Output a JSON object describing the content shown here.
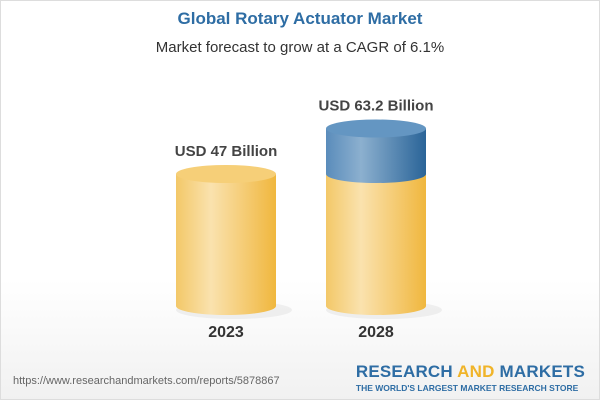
{
  "chart_data": {
    "type": "bar",
    "style": "3d-cylinder",
    "title": "Global Rotary Actuator Market",
    "subtitle": "Market forecast to grow at a CAGR of 6.1%",
    "categories": [
      "2023",
      "2028"
    ],
    "values": [
      47,
      63.2
    ],
    "unit": "USD Billion",
    "data_labels": [
      "USD 47 Billion",
      "USD 63.2 Billion"
    ],
    "colors": {
      "base": "#f3c35a",
      "growth": "#3f7bb0"
    }
  },
  "footer": {
    "url": "https://www.researchandmarkets.com/reports/5878867",
    "logo_part1": "RESEARCH ",
    "logo_part2": "AND",
    "logo_part3": " MARKETS",
    "logo_tagline": "THE WORLD'S LARGEST MARKET RESEARCH STORE"
  }
}
